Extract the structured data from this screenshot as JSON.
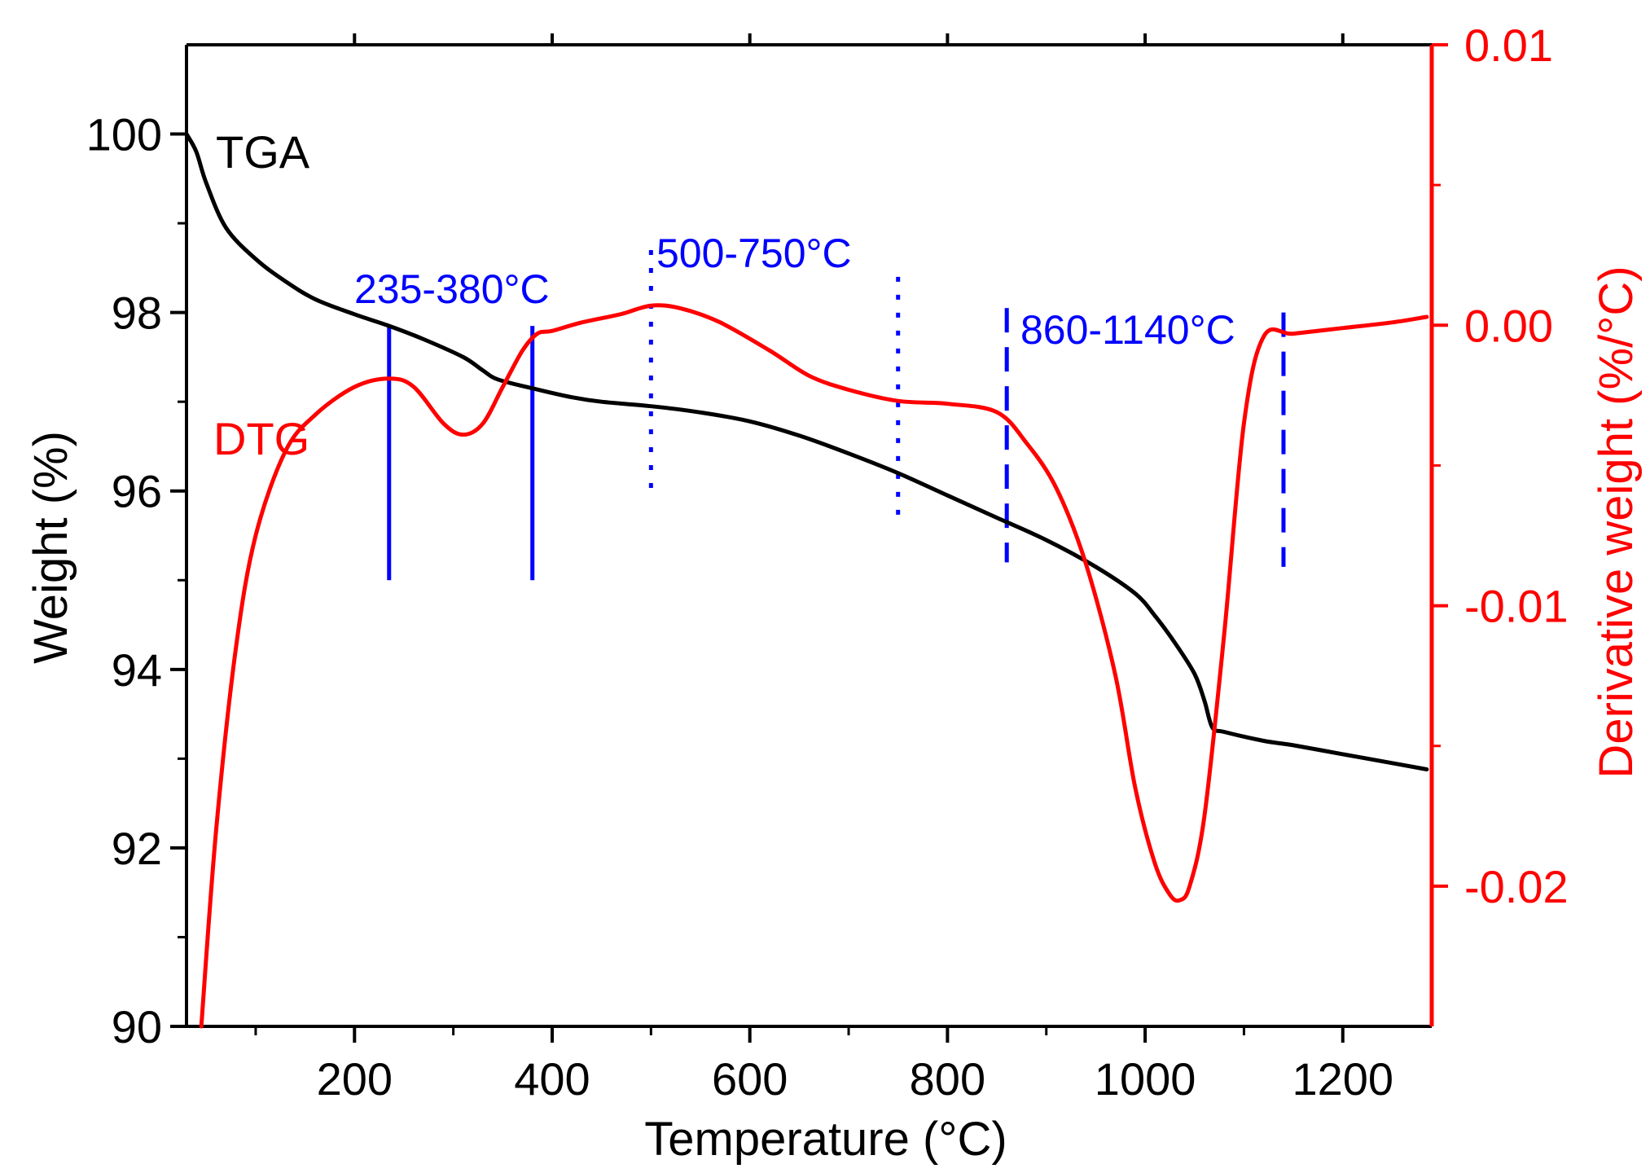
{
  "chart_data": {
    "type": "line",
    "xlabel": "Temperature (°C)",
    "ylabel_left": "Weight (%)",
    "ylabel_right": "Derivative weight (%/°C)",
    "xlim": [
      30,
      1290
    ],
    "ylim_left": [
      90,
      101
    ],
    "ylim_right": [
      -0.025,
      0.01
    ],
    "x_ticks": [
      200,
      400,
      600,
      800,
      1000,
      1200
    ],
    "x_minor_ticks": [
      100,
      300,
      500,
      700,
      900,
      1100
    ],
    "y_left_ticks": [
      90,
      92,
      94,
      96,
      98,
      100
    ],
    "y_left_minor_ticks": [
      91,
      93,
      95,
      97,
      99
    ],
    "y_right_ticks": [
      0.01,
      0.0,
      -0.01,
      -0.02
    ],
    "y_right_tick_labels": [
      "0.01",
      "0.00",
      "-0.01",
      "-0.02"
    ],
    "y_right_minor_ticks": [
      0.005,
      -0.005,
      -0.015
    ],
    "grid": false,
    "colors": {
      "tga": "#000000",
      "dtg": "#ff0000",
      "ranges": "#0000ff",
      "axis": "#000000",
      "right_axis": "#ff0000"
    },
    "series": [
      {
        "name": "TGA",
        "axis": "left",
        "x": [
          30,
          40,
          50,
          70,
          100,
          130,
          160,
          200,
          235,
          270,
          310,
          330,
          345,
          380,
          420,
          450,
          500,
          550,
          600,
          650,
          700,
          750,
          800,
          850,
          900,
          950,
          990,
          1010,
          1030,
          1050,
          1060,
          1068,
          1080,
          1120,
          1150,
          1200,
          1250,
          1285
        ],
        "y": [
          100.0,
          99.8,
          99.45,
          98.95,
          98.6,
          98.35,
          98.15,
          97.98,
          97.85,
          97.7,
          97.5,
          97.35,
          97.25,
          97.15,
          97.05,
          97.0,
          96.95,
          96.88,
          96.78,
          96.62,
          96.42,
          96.2,
          95.95,
          95.7,
          95.45,
          95.15,
          94.85,
          94.6,
          94.3,
          93.95,
          93.65,
          93.35,
          93.3,
          93.2,
          93.15,
          93.05,
          92.95,
          92.88
        ]
      },
      {
        "name": "DTG",
        "axis": "right",
        "x": [
          45,
          60,
          80,
          100,
          130,
          160,
          200,
          235,
          260,
          290,
          310,
          330,
          350,
          370,
          385,
          400,
          430,
          470,
          500,
          530,
          570,
          620,
          660,
          700,
          750,
          800,
          850,
          880,
          910,
          940,
          970,
          990,
          1010,
          1025,
          1035,
          1045,
          1060,
          1080,
          1100,
          1120,
          1150,
          1200,
          1250,
          1285
        ],
        "y": [
          -0.025,
          -0.018,
          -0.0115,
          -0.0075,
          -0.0045,
          -0.0032,
          -0.0022,
          -0.0019,
          -0.0022,
          -0.0035,
          -0.0039,
          -0.0035,
          -0.0022,
          -0.0009,
          -0.0003,
          -0.0002,
          0.0001,
          0.0004,
          0.0007,
          0.0006,
          0.0001,
          -0.0009,
          -0.0018,
          -0.0023,
          -0.0027,
          -0.0028,
          -0.0031,
          -0.0042,
          -0.0058,
          -0.0085,
          -0.0125,
          -0.0165,
          -0.0192,
          -0.0203,
          -0.0205,
          -0.02,
          -0.0175,
          -0.011,
          -0.0035,
          -0.0004,
          -0.0003,
          -0.0001,
          0.0001,
          0.0003
        ]
      }
    ],
    "series_labels": [
      {
        "text": "TGA",
        "color": "#000000"
      },
      {
        "text": "DTG",
        "color": "#ff0000"
      }
    ],
    "annotations": [
      {
        "text": "235-380°C",
        "x_range": [
          235,
          380
        ],
        "style": "solid",
        "color": "#0000ff"
      },
      {
        "text": "500-750°C",
        "x_range": [
          500,
          750
        ],
        "style": "dotted",
        "color": "#0000ff"
      },
      {
        "text": "860-1140°C",
        "x_range": [
          860,
          1140
        ],
        "style": "dashed",
        "color": "#0000ff"
      }
    ]
  }
}
